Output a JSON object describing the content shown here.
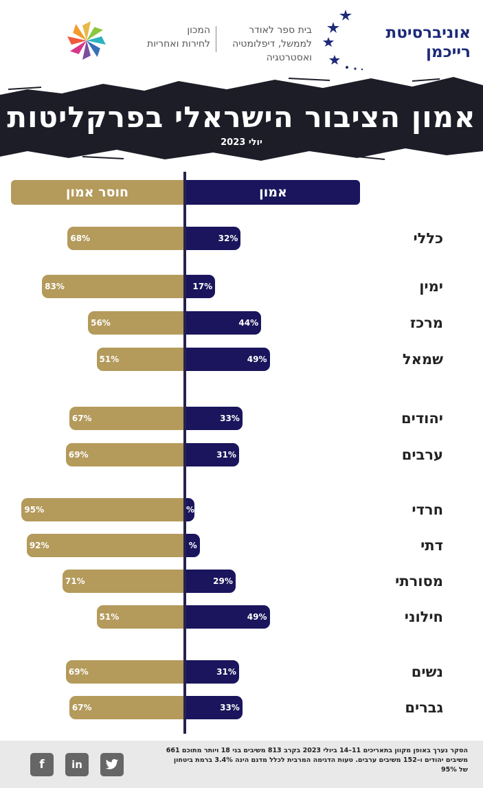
{
  "header": {
    "university_line1": "אוניברסיטת",
    "university_line2": "רייכמן",
    "school_line1": "בית ספר לאודר",
    "school_line2": "לממשל, דיפלומטיה",
    "school_line3": "ואסטרטגיה",
    "institute_line1": "המכון",
    "institute_line2": "לחירות ואחריות"
  },
  "title": "אמון הציבור הישראלי בפרקליטות",
  "subtitle": "יולי 2023",
  "chart_data": {
    "type": "bar",
    "legend": {
      "trust": "אמון",
      "distrust": "חוסר אמון"
    },
    "colors": {
      "trust": "#1a155c",
      "distrust": "#b49a5b",
      "axis": "#26234d"
    },
    "categories": [
      "כללי",
      "ימין",
      "מרכז",
      "שמאל",
      "יהודים",
      "ערבים",
      "חרדי",
      "דתי",
      "מסורתי",
      "חילוני",
      "נשים",
      "גברים"
    ],
    "series": [
      {
        "name": "אמון",
        "values": [
          32,
          17,
          44,
          49,
          33,
          31,
          5,
          8,
          29,
          49,
          31,
          33
        ]
      },
      {
        "name": "חוסר אמון",
        "values": [
          68,
          83,
          56,
          51,
          67,
          69,
          95,
          92,
          71,
          51,
          69,
          67
        ]
      }
    ],
    "value_labels": {
      "trust": [
        "32%",
        "17%",
        "44%",
        "49%",
        "33%",
        "31%",
        "%",
        "%",
        "29%",
        "49%",
        "31%",
        "33%"
      ],
      "distrust": [
        "68%",
        "83%",
        "56%",
        "51%",
        "67%",
        "69%",
        "95%",
        "92%",
        "71%",
        "51%",
        "69%",
        "67%"
      ]
    },
    "xlim": [
      0,
      100
    ]
  },
  "footer": {
    "note": "הסקר נערך באופן מקוון בתאריכים 11–14 ביולי 2023 בקרב 813 משיבים בני 18 ויותר מתוכם 661 משיבים יהודים ו–152 משיבים ערבים. טעות הדגימה המרבית לכלל מדגם הינה 3.4% ברמת ביטחון של 95%",
    "facebook": "f",
    "linkedin": "in",
    "twitter": "t"
  }
}
